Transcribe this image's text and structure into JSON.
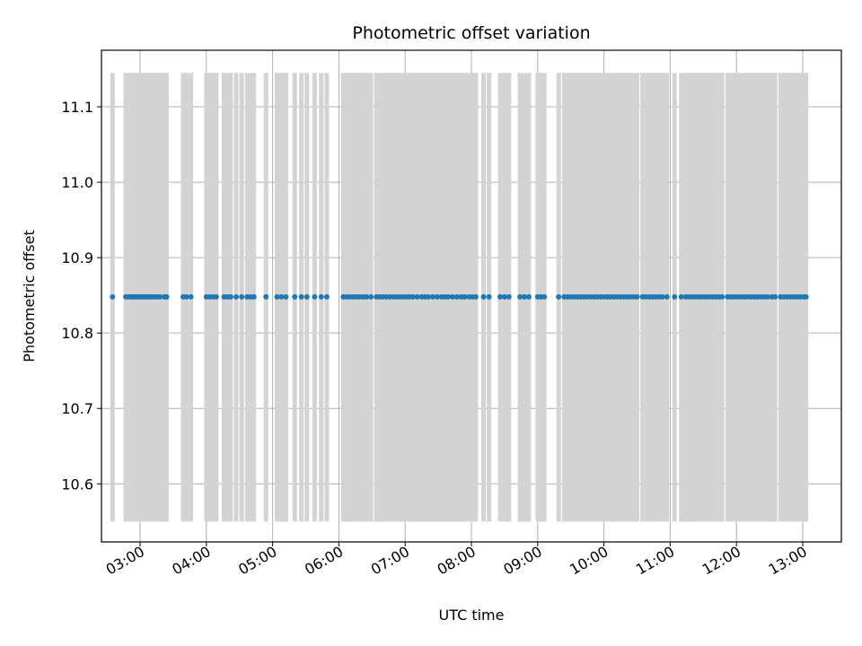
{
  "chart_data": {
    "type": "scatter",
    "title": "Photometric offset variation",
    "xlabel": "UTC time",
    "ylabel": "Photometric offset",
    "x_tick_labels": [
      "03:00",
      "04:00",
      "05:00",
      "06:00",
      "07:00",
      "08:00",
      "09:00",
      "10:00",
      "11:00",
      "12:00",
      "13:00"
    ],
    "y_tick_labels": [
      "10.6",
      "10.7",
      "10.8",
      "10.9",
      "11.0",
      "11.1"
    ],
    "xlim": [
      "02:25",
      "13:35"
    ],
    "ylim": [
      10.523,
      11.175
    ],
    "grid": true,
    "point_value": 10.848,
    "error_bar": {
      "low": 10.55,
      "high": 11.145
    },
    "colors": {
      "points": "#1f77b4",
      "error_bars": "#d3d3d3",
      "grid": "#b0b0b0"
    },
    "x": [
      "02:35",
      "02:47",
      "02:49",
      "02:51",
      "02:53",
      "02:55",
      "02:57",
      "02:59",
      "03:01",
      "03:03",
      "03:05",
      "03:07",
      "03:09",
      "03:11",
      "03:13",
      "03:15",
      "03:18",
      "03:22",
      "03:24",
      "03:39",
      "03:42",
      "03:46",
      "04:00",
      "04:03",
      "04:06",
      "04:09",
      "04:16",
      "04:19",
      "04:22",
      "04:27",
      "04:32",
      "04:37",
      "04:40",
      "04:43",
      "04:54",
      "05:04",
      "05:08",
      "05:12",
      "05:20",
      "05:26",
      "05:31",
      "05:38",
      "05:44",
      "05:49",
      "06:04",
      "06:07",
      "06:10",
      "06:13",
      "06:16",
      "06:19",
      "06:22",
      "06:25",
      "06:29",
      "06:34",
      "06:37",
      "06:40",
      "06:43",
      "06:46",
      "06:49",
      "06:52",
      "06:55",
      "06:58",
      "07:01",
      "07:04",
      "07:07",
      "07:11",
      "07:15",
      "07:18",
      "07:21",
      "07:25",
      "07:29",
      "07:33",
      "07:36",
      "07:39",
      "07:43",
      "07:47",
      "07:51",
      "07:54",
      "07:58",
      "08:01",
      "08:04",
      "08:11",
      "08:16",
      "08:26",
      "08:30",
      "08:34",
      "08:44",
      "08:48",
      "08:52",
      "09:00",
      "09:03",
      "09:06",
      "09:19",
      "09:24",
      "09:27",
      "09:30",
      "09:33",
      "09:36",
      "09:39",
      "09:42",
      "09:45",
      "09:48",
      "09:51",
      "09:54",
      "09:57",
      "10:00",
      "10:03",
      "10:06",
      "10:09",
      "10:12",
      "10:15",
      "10:18",
      "10:21",
      "10:24",
      "10:27",
      "10:30",
      "10:35",
      "10:38",
      "10:41",
      "10:44",
      "10:47",
      "10:50",
      "10:53",
      "10:57",
      "11:04",
      "11:10",
      "11:14",
      "11:17",
      "11:20",
      "11:23",
      "11:26",
      "11:29",
      "11:32",
      "11:35",
      "11:38",
      "11:41",
      "11:44",
      "11:47",
      "11:52",
      "11:55",
      "11:58",
      "12:01",
      "12:04",
      "12:07",
      "12:10",
      "12:13",
      "12:16",
      "12:19",
      "12:22",
      "12:25",
      "12:28",
      "12:32",
      "12:35",
      "12:40",
      "12:43",
      "12:46",
      "12:49",
      "12:52",
      "12:55",
      "12:58",
      "13:01",
      "13:03"
    ]
  }
}
